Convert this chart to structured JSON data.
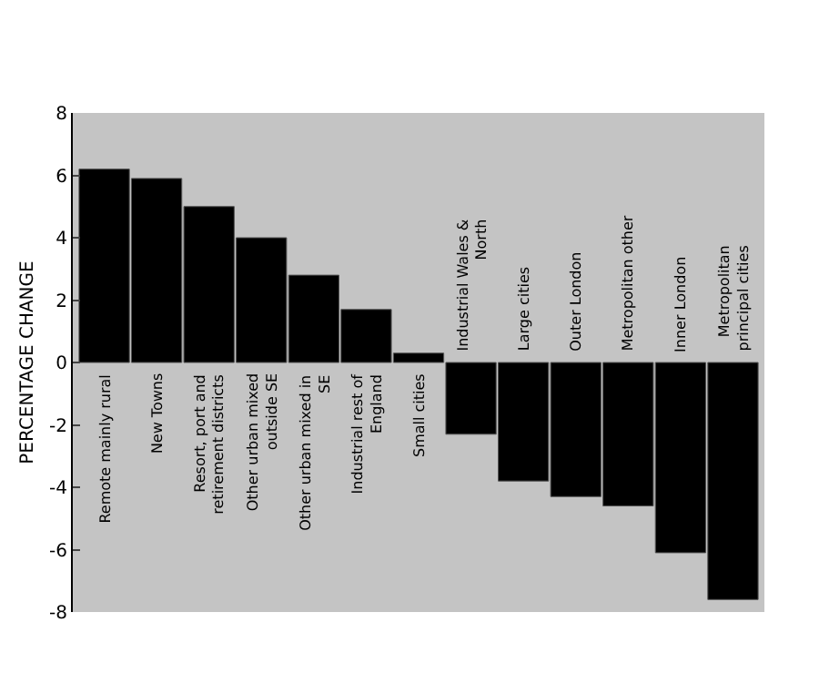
{
  "chart_data": {
    "type": "bar",
    "ylabel": "PERCENTAGE CHANGE",
    "categories": [
      "Remote mainly rural",
      "New Towns",
      "Resort, port and retirement districts",
      "Other urban mixed outside SE",
      "Other urban mixed in SE",
      "Industrial rest of England",
      "Small cities",
      "Industrial Wales & North",
      "Large cities",
      "Outer London",
      "Metropolitan other",
      "Inner London",
      "Metropolitan principal cities"
    ],
    "values": [
      6.2,
      5.9,
      5.0,
      4.0,
      2.8,
      1.7,
      0.3,
      -2.3,
      -3.8,
      -4.3,
      -4.6,
      -6.1,
      -7.6
    ],
    "color": "#000000",
    "ylim": [
      -8,
      8
    ],
    "yticks": [
      -8,
      -6,
      -4,
      -2,
      0,
      2,
      4,
      6,
      8
    ],
    "grid": false
  }
}
